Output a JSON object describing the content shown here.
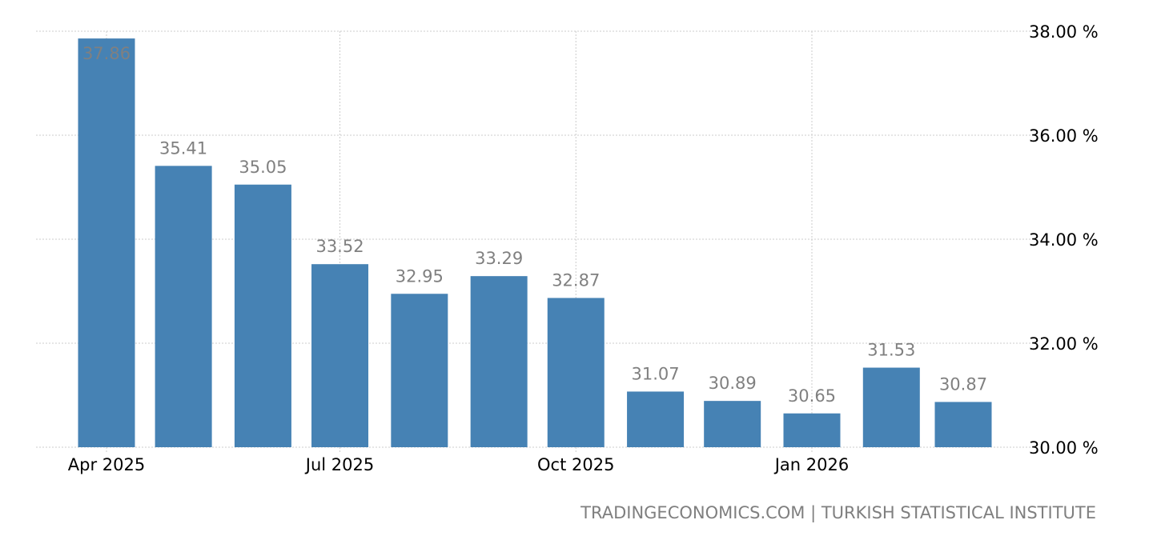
{
  "chart_data": {
    "type": "bar",
    "categories": [
      "Apr 2025",
      "May 2025",
      "Jun 2025",
      "Jul 2025",
      "Aug 2025",
      "Sep 2025",
      "Oct 2025",
      "Nov 2025",
      "Dec 2025",
      "Jan 2026",
      "Feb 2026",
      "Mar 2026"
    ],
    "dates": [
      "2025-04-01",
      "2025-05-01",
      "2025-06-01",
      "2025-07-01",
      "2025-08-01",
      "2025-09-01",
      "2025-10-01",
      "2025-11-01",
      "2025-12-01",
      "2026-01-01",
      "2026-02-01",
      "2026-03-01"
    ],
    "values": [
      37.86,
      35.41,
      35.05,
      33.52,
      32.95,
      33.29,
      32.87,
      31.07,
      30.89,
      30.65,
      31.53,
      30.87
    ],
    "data_labels": [
      "37.86",
      "35.41",
      "35.05",
      "33.52",
      "32.95",
      "33.29",
      "32.87",
      "31.07",
      "30.89",
      "30.65",
      "31.53",
      "30.87"
    ],
    "x_ticks": [
      {
        "date": "2025-04-01",
        "label": "Apr 2025"
      },
      {
        "date": "2025-07-01",
        "label": "Jul 2025"
      },
      {
        "date": "2025-10-01",
        "label": "Oct 2025"
      },
      {
        "date": "2026-01-01",
        "label": "Jan 2026"
      }
    ],
    "y_ticks": [
      30,
      32,
      34,
      36,
      38
    ],
    "y_tick_labels": [
      "30.00 %",
      "32.00 %",
      "34.00 %",
      "36.00 %",
      "38.00 %"
    ],
    "ylim": [
      30,
      38
    ],
    "y_axis_position": "right",
    "grid": true,
    "colors": {
      "bar": "#4682b4",
      "label": "#808080",
      "grid": "#cccccc"
    }
  },
  "source": "TRADINGECONOMICS.COM | TURKISH STATISTICAL INSTITUTE"
}
